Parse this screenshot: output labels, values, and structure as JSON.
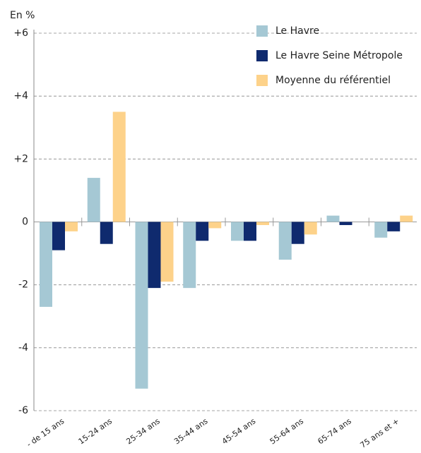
{
  "chart_data": {
    "type": "bar",
    "y_axis_label": "En %",
    "categories": [
      "- de 15 ans",
      "15-24 ans",
      "25-34 ans",
      "35-44 ans",
      "45-54 ans",
      "55-64 ans",
      "65-74 ans",
      "75 ans et +"
    ],
    "series": [
      {
        "name": "Le Havre",
        "color": "#a5c8d4",
        "values": [
          -2.7,
          1.4,
          -5.3,
          -2.1,
          -0.6,
          -1.2,
          0.2,
          -0.5
        ]
      },
      {
        "name": "Le Havre Seine Métropole",
        "color": "#0f2a6e",
        "values": [
          -0.9,
          -0.7,
          -2.1,
          -0.6,
          -0.6,
          -0.7,
          -0.1,
          -0.3
        ]
      },
      {
        "name": "Moyenne du référentiel",
        "color": "#fdd28a",
        "values": [
          -0.3,
          3.5,
          -1.9,
          -0.2,
          -0.1,
          -0.4,
          0,
          0.2
        ]
      }
    ],
    "ylim": [
      -6,
      6
    ],
    "yticks": [
      -6,
      -4,
      -2,
      0,
      {
        "value": 2,
        "label": "+2"
      },
      {
        "value": 4,
        "label": "+4"
      },
      {
        "value": 6,
        "label": "+6"
      }
    ],
    "grid": true,
    "legend": "top-right"
  }
}
